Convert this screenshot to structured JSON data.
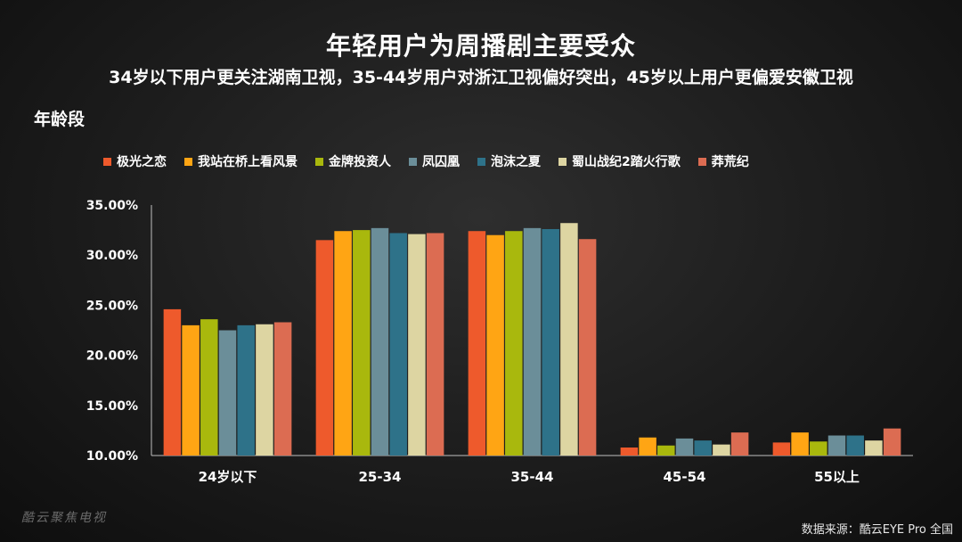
{
  "title": "年轻用户为周播剧主要受众",
  "subtitle": "34岁以下用户更关注湖南卫视，35-44岁用户对浙江卫视偏好突出，45岁以上用户更偏爱安徽卫视",
  "section_label": "年龄段",
  "watermark": "酷云聚焦电视",
  "source": "数据来源：酷云EYE Pro  全国",
  "chart_data": {
    "type": "bar",
    "categories": [
      "24岁以下",
      "25-34",
      "35-44",
      "45-54",
      "55以上"
    ],
    "ylim": [
      10,
      35
    ],
    "yticks": [
      10,
      15,
      20,
      25,
      30,
      35
    ],
    "ytick_labels": [
      "10.00%",
      "15.00%",
      "20.00%",
      "25.00%",
      "30.00%",
      "35.00%"
    ],
    "grid": false,
    "legend_position": "top",
    "series": [
      {
        "name": "极光之恋",
        "color": "#ee5a2c",
        "values": [
          24.6,
          31.5,
          32.4,
          10.8,
          11.3
        ]
      },
      {
        "name": "我站在桥上看风景",
        "color": "#ffa514",
        "values": [
          23.0,
          32.4,
          32.0,
          11.8,
          12.3
        ]
      },
      {
        "name": "金牌投资人",
        "color": "#a9b80d",
        "values": [
          23.6,
          32.5,
          32.4,
          11.0,
          11.4
        ]
      },
      {
        "name": "凤囚凰",
        "color": "#6b8e99",
        "values": [
          22.5,
          32.7,
          32.7,
          11.7,
          12.0
        ]
      },
      {
        "name": "泡沫之夏",
        "color": "#2e7289",
        "values": [
          23.0,
          32.2,
          32.6,
          11.5,
          12.0
        ]
      },
      {
        "name": "蜀山战纪2踏火行歌",
        "color": "#ddd5a2",
        "values": [
          23.1,
          32.1,
          33.2,
          11.1,
          11.5
        ]
      },
      {
        "name": "莽荒纪",
        "color": "#dc6c52",
        "values": [
          23.3,
          32.2,
          31.6,
          12.3,
          12.7
        ]
      }
    ]
  }
}
